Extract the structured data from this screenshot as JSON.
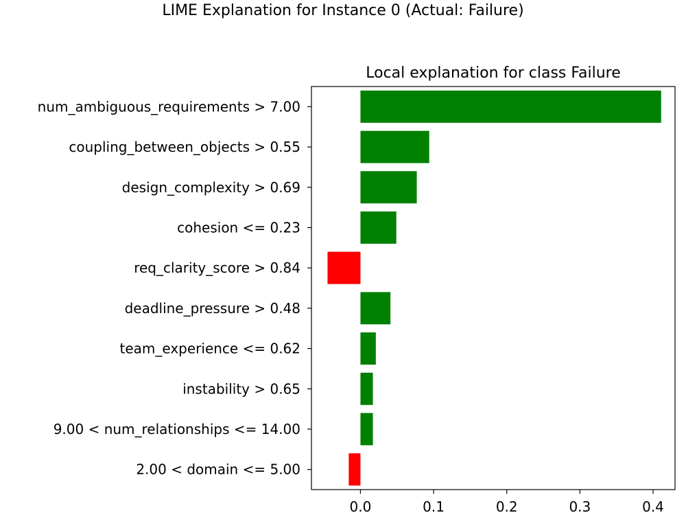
{
  "figure_title": "LIME Explanation for Instance 0 (Actual: Failure)",
  "chart_data": {
    "type": "bar",
    "orientation": "horizontal",
    "title": "Local explanation for class Failure",
    "xlabel": "",
    "ylabel": "",
    "categories": [
      "num_ambiguous_requirements > 7.00",
      "coupling_between_objects > 0.55",
      "design_complexity > 0.69",
      "cohesion <= 0.23",
      "req_clarity_score > 0.84",
      "deadline_pressure > 0.48",
      "team_experience <= 0.62",
      "instability > 0.65",
      "9.00 < num_relationships <= 14.00",
      "2.00 < domain <= 5.00"
    ],
    "values": [
      0.411,
      0.094,
      0.077,
      0.049,
      -0.045,
      0.041,
      0.021,
      0.017,
      0.017,
      -0.016
    ],
    "xlim": [
      -0.067,
      0.43
    ],
    "xticks": [
      0.0,
      0.1,
      0.2,
      0.3,
      0.4
    ],
    "xtick_labels": [
      "0.0",
      "0.1",
      "0.2",
      "0.3",
      "0.4"
    ],
    "colors": {
      "positive": "#008000",
      "negative": "#ff0000"
    },
    "grid": false
  }
}
